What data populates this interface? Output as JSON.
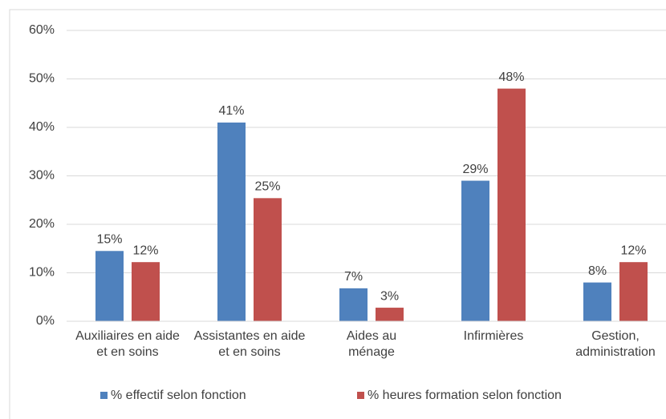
{
  "chart_data": {
    "type": "bar",
    "categories": [
      "Auxiliaires en aide et en soins",
      "Assistantes en aide et en soins",
      "Aides au ménage",
      "Infirmières",
      "Gestion, administration"
    ],
    "series": [
      {
        "name": "% effectif selon fonction",
        "color": "#4f81bd",
        "values": [
          14.5,
          41,
          6.8,
          29,
          8
        ],
        "value_labels": [
          "15%",
          "41%",
          "7%",
          "29%",
          "8%"
        ]
      },
      {
        "name": "% heures formation selon fonction",
        "color": "#c0504d",
        "values": [
          12.2,
          25.4,
          2.8,
          48,
          12.2
        ],
        "value_labels": [
          "12%",
          "25%",
          "3%",
          "48%",
          "12%"
        ]
      }
    ],
    "ylim": [
      0,
      60
    ],
    "yticks": [
      {
        "value": 0,
        "label": "0%"
      },
      {
        "value": 10,
        "label": "10%"
      },
      {
        "value": 20,
        "label": "20%"
      },
      {
        "value": 30,
        "label": "30%"
      },
      {
        "value": 40,
        "label": "40%"
      },
      {
        "value": 50,
        "label": "50%"
      },
      {
        "value": 60,
        "label": "60%"
      }
    ],
    "grid": true,
    "legend": "bottom"
  }
}
